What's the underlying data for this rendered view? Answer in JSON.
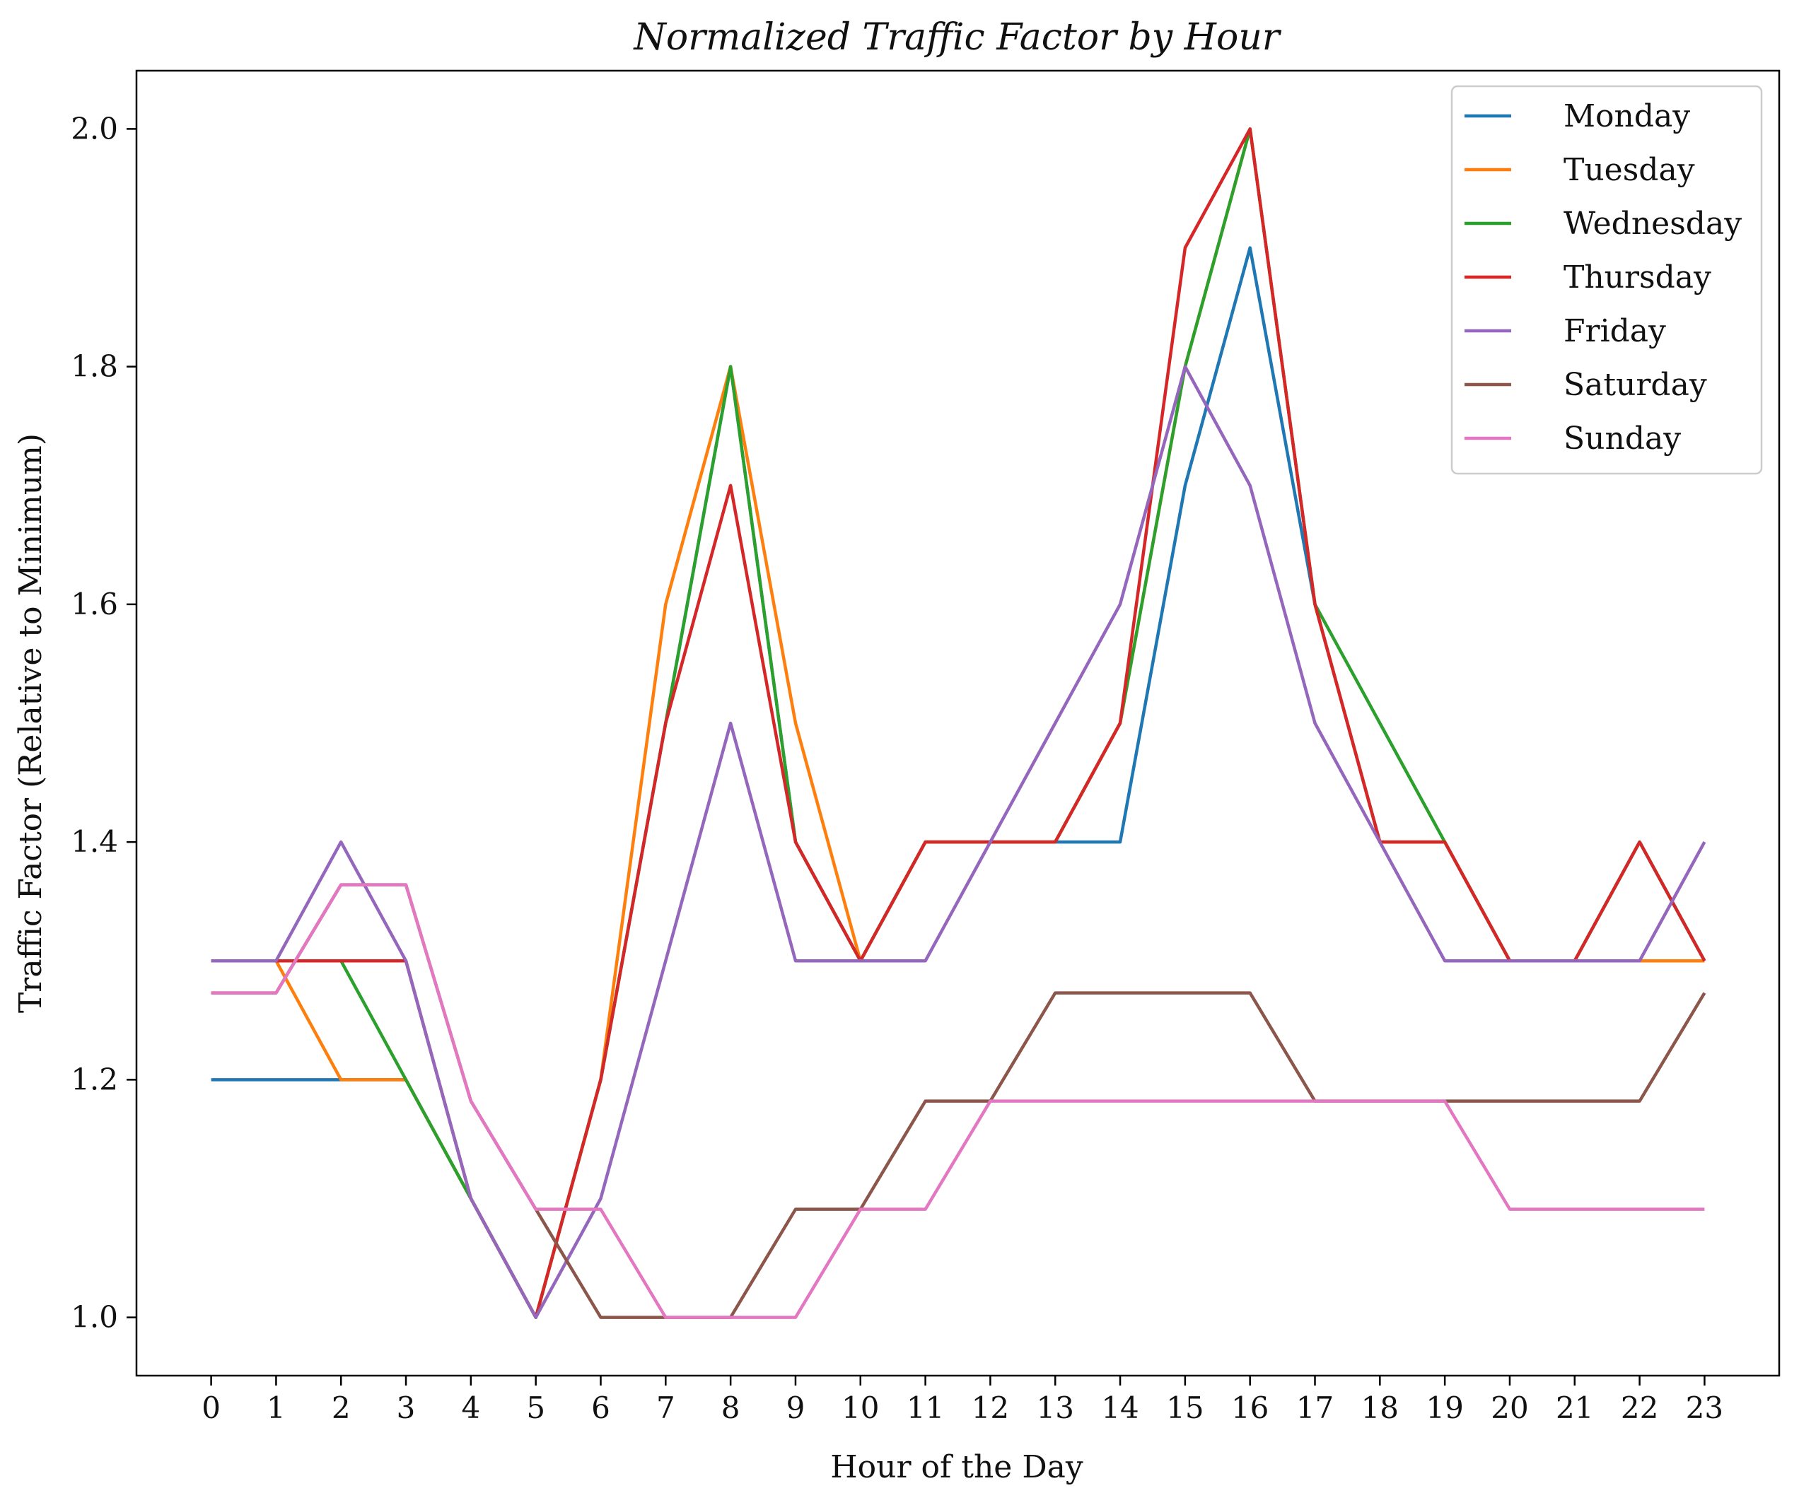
{
  "chart_data": {
    "type": "line",
    "title": "Normalized Traffic Factor by Hour",
    "xlabel": "Hour of the Day",
    "ylabel": "Traffic Factor (Relative to Minimum)",
    "x": [
      0,
      1,
      2,
      3,
      4,
      5,
      6,
      7,
      8,
      9,
      10,
      11,
      12,
      13,
      14,
      15,
      16,
      17,
      18,
      19,
      20,
      21,
      22,
      23
    ],
    "xticks": [
      "0",
      "1",
      "2",
      "3",
      "4",
      "5",
      "6",
      "7",
      "8",
      "9",
      "10",
      "11",
      "12",
      "13",
      "14",
      "15",
      "16",
      "17",
      "18",
      "19",
      "20",
      "21",
      "22",
      "23"
    ],
    "yticks": [
      "1.0",
      "1.2",
      "1.4",
      "1.6",
      "1.8",
      "2.0"
    ],
    "xlim": [
      -1.15,
      24.15
    ],
    "ylim": [
      0.951,
      2.049
    ],
    "grid": false,
    "legend_position": "top-right",
    "series": [
      {
        "name": "Monday",
        "color": "#1f77b4",
        "values": [
          1.2,
          1.2,
          1.2,
          1.2,
          1.1,
          1.0,
          1.2,
          1.5,
          1.8,
          1.4,
          1.3,
          1.4,
          1.4,
          1.4,
          1.4,
          1.7,
          1.9,
          1.6,
          1.4,
          1.4,
          1.3,
          1.3,
          1.4,
          1.3
        ]
      },
      {
        "name": "Tuesday",
        "color": "#ff7f0e",
        "values": [
          1.3,
          1.3,
          1.2,
          1.2,
          1.1,
          1.0,
          1.2,
          1.6,
          1.8,
          1.5,
          1.3,
          1.4,
          1.4,
          1.4,
          1.5,
          1.8,
          2.0,
          1.6,
          1.4,
          1.4,
          1.3,
          1.3,
          1.3,
          1.3
        ]
      },
      {
        "name": "Wednesday",
        "color": "#2ca02c",
        "values": [
          1.3,
          1.3,
          1.3,
          1.2,
          1.1,
          1.0,
          1.2,
          1.5,
          1.8,
          1.4,
          1.3,
          1.4,
          1.4,
          1.4,
          1.5,
          1.8,
          2.0,
          1.6,
          1.5,
          1.4,
          1.3,
          1.3,
          1.4,
          1.3
        ]
      },
      {
        "name": "Thursday",
        "color": "#d62728",
        "values": [
          1.3,
          1.3,
          1.3,
          1.3,
          1.1,
          1.0,
          1.2,
          1.5,
          1.7,
          1.4,
          1.3,
          1.4,
          1.4,
          1.4,
          1.5,
          1.9,
          2.0,
          1.6,
          1.4,
          1.4,
          1.3,
          1.3,
          1.4,
          1.3
        ]
      },
      {
        "name": "Friday",
        "color": "#9467bd",
        "values": [
          1.3,
          1.3,
          1.4,
          1.3,
          1.1,
          1.0,
          1.1,
          1.3,
          1.5,
          1.3,
          1.3,
          1.3,
          1.4,
          1.5,
          1.6,
          1.8,
          1.7,
          1.5,
          1.4,
          1.3,
          1.3,
          1.3,
          1.3,
          1.4
        ]
      },
      {
        "name": "Saturday",
        "color": "#8c564b",
        "values": [
          1.273,
          1.273,
          1.364,
          1.364,
          1.182,
          1.091,
          1.0,
          1.0,
          1.0,
          1.091,
          1.091,
          1.182,
          1.182,
          1.273,
          1.273,
          1.273,
          1.273,
          1.182,
          1.182,
          1.182,
          1.182,
          1.182,
          1.182,
          1.273
        ]
      },
      {
        "name": "Sunday",
        "color": "#e377c2",
        "values": [
          1.273,
          1.273,
          1.364,
          1.364,
          1.182,
          1.091,
          1.091,
          1.0,
          1.0,
          1.0,
          1.091,
          1.091,
          1.182,
          1.182,
          1.182,
          1.182,
          1.182,
          1.182,
          1.182,
          1.182,
          1.091,
          1.091,
          1.091,
          1.091
        ]
      }
    ]
  }
}
